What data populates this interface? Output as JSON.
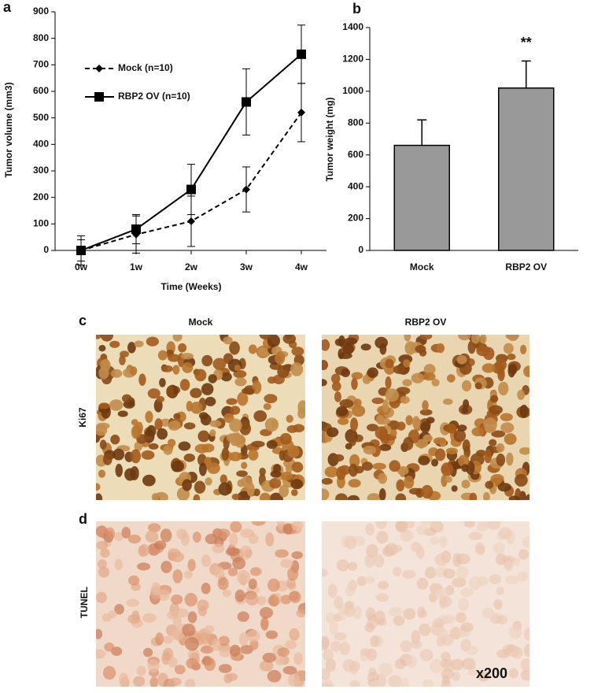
{
  "chart_data": [
    {
      "type": "line",
      "panel": "a",
      "ylabel": "Tumor volume (mm3)",
      "xlabel": "Time (Weeks)",
      "categories": [
        "0w",
        "1w",
        "2w",
        "3w",
        "4w"
      ],
      "ylim": [
        0,
        900
      ],
      "yticks": [
        0,
        100,
        200,
        300,
        400,
        500,
        600,
        700,
        800,
        900
      ],
      "grid": false,
      "series": [
        {
          "name": "Mock  (n=10)",
          "color": "#000000",
          "line_style": "dashed",
          "marker": "diamond",
          "values": [
            0,
            60,
            110,
            230,
            520
          ],
          "errors": [
            40,
            70,
            95,
            85,
            110
          ]
        },
        {
          "name": "RBP2 OV  (n=10)",
          "color": "#000000",
          "line_style": "solid",
          "marker": "square",
          "values": [
            0,
            80,
            230,
            560,
            740
          ],
          "errors": [
            55,
            55,
            95,
            125,
            110
          ]
        }
      ]
    },
    {
      "type": "bar",
      "panel": "b",
      "ylabel": "Tumor weight  (mg)",
      "categories": [
        "Mock",
        "RBP2 OV"
      ],
      "values": [
        660,
        1020
      ],
      "errors": [
        160,
        170
      ],
      "annotations": [
        "",
        "**"
      ],
      "color": "#999999",
      "ylim": [
        0,
        1400
      ],
      "yticks": [
        0,
        200,
        400,
        600,
        800,
        1000,
        1200,
        1400
      ],
      "grid": false
    }
  ],
  "panels": {
    "c": {
      "label": "c",
      "columns": [
        "Mock",
        "RBP2 OV"
      ],
      "row_label": "Ki67"
    },
    "d": {
      "label": "d",
      "row_label": "TUNEL",
      "magnification": "x200"
    }
  }
}
